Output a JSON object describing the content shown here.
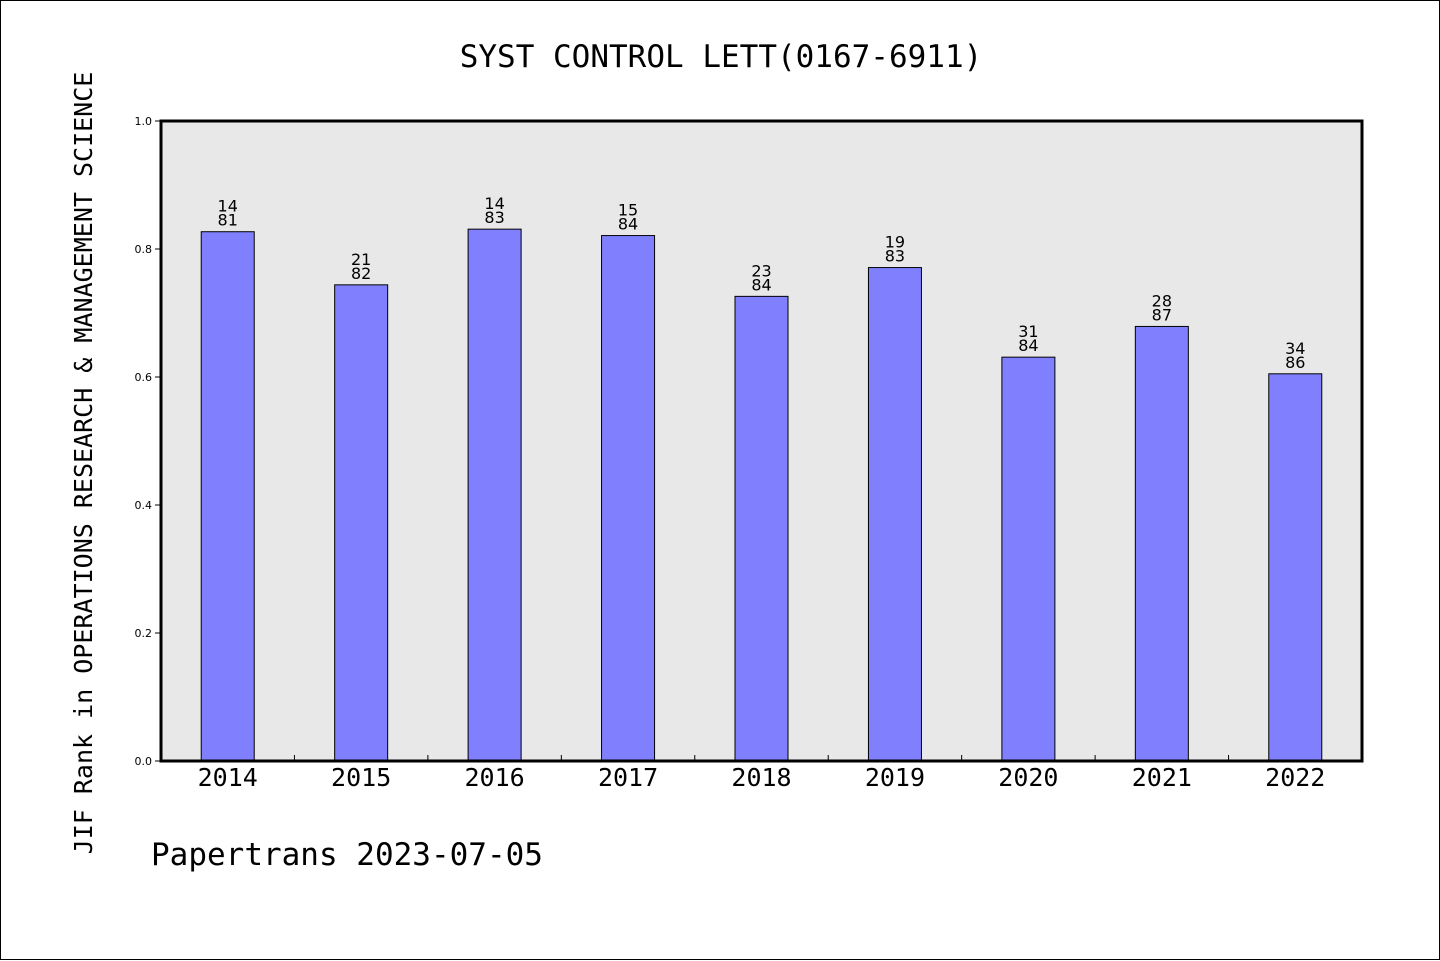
{
  "chart_data": {
    "type": "bar",
    "title": "SYST CONTROL LETT(0167-6911)",
    "ylabel": "JIF Rank in OPERATIONS RESEARCH & MANAGEMENT SCIENCE",
    "xlabel": "",
    "categories": [
      "2014",
      "2015",
      "2016",
      "2017",
      "2018",
      "2019",
      "2020",
      "2021",
      "2022"
    ],
    "values": [
      0.827,
      0.744,
      0.831,
      0.821,
      0.726,
      0.771,
      0.631,
      0.679,
      0.605
    ],
    "bar_labels": [
      [
        "14",
        "81"
      ],
      [
        "21",
        "82"
      ],
      [
        "14",
        "83"
      ],
      [
        "15",
        "84"
      ],
      [
        "23",
        "84"
      ],
      [
        "19",
        "83"
      ],
      [
        "31",
        "84"
      ],
      [
        "28",
        "87"
      ],
      [
        "34",
        "86"
      ]
    ],
    "ylim": [
      0,
      1.0
    ],
    "yticks": [
      "0.0",
      "0.2",
      "0.4",
      "0.6",
      "0.8",
      "1.0"
    ],
    "grid": false,
    "bar_color": "#8080ff",
    "plot_background": "#e8e8e8"
  },
  "footer": "Papertrans 2023-07-05"
}
